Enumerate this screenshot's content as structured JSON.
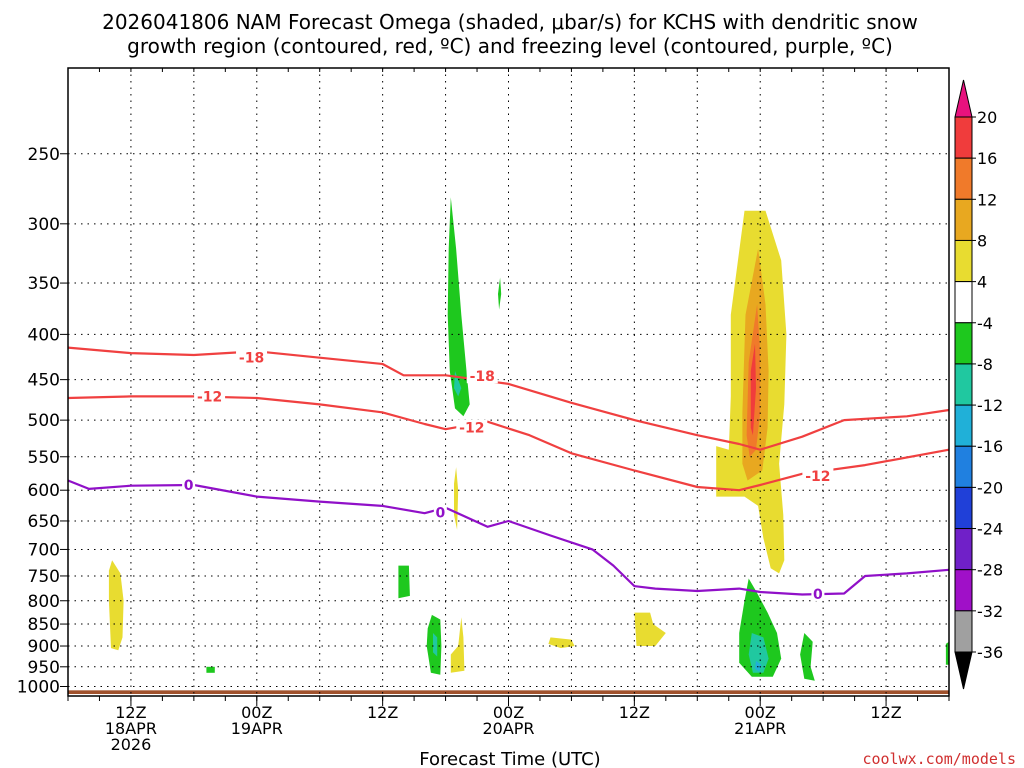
{
  "chart_data": {
    "type": "contour",
    "title_line1": "2026041806 NAM Forecast Omega (shaded, μbar/s) for KCHS with dendritic snow",
    "title_line2": "growth region (contoured, red, ºC) and freezing level (contoured, purple, ºC)",
    "xlabel": "Forecast Time (UTC)",
    "credit": "coolwx.com/models",
    "x_units": "forecast hours",
    "xlim": [
      0,
      84
    ],
    "y_units": "hPa",
    "ylim": [
      1025,
      200
    ],
    "y_ticks": [
      250,
      300,
      350,
      400,
      450,
      500,
      550,
      600,
      650,
      700,
      750,
      800,
      850,
      900,
      950,
      1000
    ],
    "x_ticks": [
      {
        "t": 6,
        "lines": [
          "12Z",
          "18APR",
          "2026"
        ]
      },
      {
        "t": 18,
        "lines": [
          "00Z",
          "19APR"
        ]
      },
      {
        "t": 30,
        "lines": [
          "12Z"
        ]
      },
      {
        "t": 42,
        "lines": [
          "00Z",
          "20APR"
        ]
      },
      {
        "t": 54,
        "lines": [
          "12Z"
        ]
      },
      {
        "t": 66,
        "lines": [
          "00Z",
          "21APR"
        ]
      },
      {
        "t": 78,
        "lines": [
          "12Z"
        ]
      }
    ],
    "colorbar": {
      "labels": [
        "20",
        "16",
        "12",
        "8",
        "4",
        "-4",
        "-8",
        "-12",
        "-16",
        "-20",
        "-24",
        "-28",
        "-32",
        "-36"
      ],
      "colors": [
        "#e8127e",
        "#f03c3c",
        "#f07a2a",
        "#e8a820",
        "#e8dc30",
        "#ffffff",
        "#1ec81e",
        "#20c8a0",
        "#20b0d8",
        "#2080e0",
        "#2040d8",
        "#7020c8",
        "#a010c8",
        "#a0a0a0",
        "#000000"
      ]
    },
    "series": [
      {
        "name": "-18",
        "color": "#f04040",
        "type": "contour",
        "points": [
          [
            0,
            414
          ],
          [
            6,
            420
          ],
          [
            12,
            422
          ],
          [
            18,
            418
          ],
          [
            24,
            425
          ],
          [
            30,
            432
          ],
          [
            32,
            445
          ],
          [
            36,
            445
          ],
          [
            42,
            455
          ],
          [
            48,
            478
          ],
          [
            54,
            500
          ],
          [
            60,
            520
          ],
          [
            64,
            532
          ],
          [
            66,
            540
          ],
          [
            70,
            522
          ],
          [
            74,
            500
          ],
          [
            80,
            495
          ],
          [
            84,
            487
          ]
        ]
      },
      {
        "name": "-12",
        "color": "#f04040",
        "type": "contour",
        "points": [
          [
            0,
            472
          ],
          [
            6,
            470
          ],
          [
            12,
            470
          ],
          [
            18,
            472
          ],
          [
            24,
            480
          ],
          [
            30,
            490
          ],
          [
            34,
            505
          ],
          [
            36,
            512
          ],
          [
            40,
            502
          ],
          [
            44,
            520
          ],
          [
            48,
            545
          ],
          [
            54,
            570
          ],
          [
            60,
            595
          ],
          [
            64,
            600
          ],
          [
            66,
            592
          ],
          [
            70,
            575
          ],
          [
            76,
            562
          ],
          [
            84,
            540
          ]
        ]
      },
      {
        "name": "0",
        "color": "#9010c8",
        "type": "contour",
        "points": [
          [
            0,
            585
          ],
          [
            2,
            598
          ],
          [
            6,
            593
          ],
          [
            12,
            592
          ],
          [
            18,
            610
          ],
          [
            24,
            618
          ],
          [
            30,
            625
          ],
          [
            34,
            637
          ],
          [
            36,
            628
          ],
          [
            40,
            660
          ],
          [
            42,
            650
          ],
          [
            46,
            675
          ],
          [
            50,
            700
          ],
          [
            52,
            730
          ],
          [
            54,
            770
          ],
          [
            56,
            775
          ],
          [
            60,
            780
          ],
          [
            64,
            775
          ],
          [
            66,
            782
          ],
          [
            70,
            787
          ],
          [
            74,
            785
          ],
          [
            76,
            750
          ],
          [
            80,
            745
          ],
          [
            84,
            738
          ]
        ]
      }
    ],
    "contour_labels": [
      {
        "series": "-18",
        "t": 17.5,
        "p": 425,
        "text": "-18"
      },
      {
        "series": "-18",
        "t": 39.5,
        "p": 446,
        "text": "-18"
      },
      {
        "series": "-12",
        "t": 13.5,
        "p": 470,
        "text": "-12"
      },
      {
        "series": "-12",
        "t": 38.5,
        "p": 510,
        "text": "-12"
      },
      {
        "series": "-12",
        "t": 71.5,
        "p": 578,
        "text": "-12"
      },
      {
        "series": "0",
        "t": 11.5,
        "p": 592,
        "text": "0"
      },
      {
        "series": "0",
        "t": 35.5,
        "p": 636,
        "text": "0"
      },
      {
        "series": "0",
        "t": 71.5,
        "p": 786,
        "text": "0"
      }
    ],
    "omega_regions": [
      {
        "level": "-4",
        "color": "#1ec81e",
        "points": [
          [
            36.5,
            280
          ],
          [
            37,
            320
          ],
          [
            37.5,
            380
          ],
          [
            38,
            440
          ],
          [
            38.3,
            480
          ],
          [
            37.7,
            495
          ],
          [
            36.9,
            485
          ],
          [
            36.4,
            440
          ],
          [
            36.2,
            380
          ],
          [
            36.3,
            320
          ]
        ]
      },
      {
        "level": "-8",
        "color": "#20c8a0",
        "points": [
          [
            36.9,
            440
          ],
          [
            37.5,
            460
          ],
          [
            37.2,
            470
          ],
          [
            36.8,
            460
          ]
        ]
      },
      {
        "level": "-4",
        "color": "#1ec81e",
        "points": [
          [
            41.2,
            345
          ],
          [
            41.3,
            360
          ],
          [
            41.1,
            375
          ],
          [
            41,
            360
          ]
        ]
      },
      {
        "level": "4",
        "color": "#e8dc30",
        "points": [
          [
            37,
            565
          ],
          [
            37.2,
            600
          ],
          [
            37.1,
            665
          ],
          [
            36.8,
            640
          ],
          [
            36.8,
            590
          ]
        ]
      },
      {
        "level": "4",
        "color": "#e8dc30",
        "points": [
          [
            64.5,
            290
          ],
          [
            66.5,
            290
          ],
          [
            68,
            330
          ],
          [
            68.5,
            400
          ],
          [
            68.3,
            480
          ],
          [
            67.8,
            560
          ],
          [
            68.2,
            640
          ],
          [
            68.3,
            720
          ],
          [
            67.8,
            745
          ],
          [
            67,
            735
          ],
          [
            66.3,
            680
          ],
          [
            65.8,
            625
          ],
          [
            64.5,
            610
          ],
          [
            61.8,
            610
          ],
          [
            61.8,
            535
          ],
          [
            63,
            540
          ],
          [
            63.2,
            470
          ],
          [
            63.2,
            380
          ]
        ]
      },
      {
        "level": "8",
        "color": "#e8a820",
        "points": [
          [
            65.8,
            320
          ],
          [
            66.5,
            370
          ],
          [
            66.8,
            440
          ],
          [
            66.7,
            510
          ],
          [
            66.2,
            570
          ],
          [
            64.8,
            585
          ],
          [
            64.3,
            560
          ],
          [
            64.3,
            490
          ],
          [
            64.6,
            380
          ]
        ]
      },
      {
        "level": "12",
        "color": "#f07a2a",
        "points": [
          [
            65.7,
            370
          ],
          [
            66,
            420
          ],
          [
            66,
            490
          ],
          [
            65.6,
            540
          ],
          [
            65,
            550
          ],
          [
            64.7,
            520
          ],
          [
            64.9,
            430
          ]
        ]
      },
      {
        "level": "16",
        "color": "#f03c3c",
        "points": [
          [
            65.5,
            410
          ],
          [
            65.6,
            460
          ],
          [
            65.3,
            520
          ],
          [
            65.1,
            510
          ],
          [
            65.1,
            440
          ]
        ]
      },
      {
        "level": "-4",
        "color": "#1ec81e",
        "points": [
          [
            64.9,
            755
          ],
          [
            65.6,
            780
          ],
          [
            66.7,
            825
          ],
          [
            67.6,
            870
          ],
          [
            68,
            930
          ],
          [
            67.2,
            975
          ],
          [
            65.2,
            975
          ],
          [
            64,
            940
          ],
          [
            64,
            870
          ],
          [
            64.5,
            800
          ]
        ]
      },
      {
        "level": "-8",
        "color": "#20c8a0",
        "points": [
          [
            65.2,
            870
          ],
          [
            66.3,
            880
          ],
          [
            66.8,
            930
          ],
          [
            66.3,
            965
          ],
          [
            65.3,
            965
          ],
          [
            64.9,
            920
          ]
        ]
      },
      {
        "level": "-12",
        "color": "#20b0d8",
        "points": [
          [
            65.6,
            935
          ],
          [
            66.1,
            945
          ],
          [
            65.9,
            962
          ],
          [
            65.5,
            955
          ]
        ]
      },
      {
        "level": "4",
        "color": "#e8dc30",
        "points": [
          [
            4.2,
            720
          ],
          [
            5,
            745
          ],
          [
            5.3,
            800
          ],
          [
            5.2,
            880
          ],
          [
            4.8,
            910
          ],
          [
            4.1,
            905
          ],
          [
            3.9,
            800
          ],
          [
            3.9,
            740
          ]
        ]
      },
      {
        "level": "-4",
        "color": "#1ec81e",
        "points": [
          [
            31.5,
            730
          ],
          [
            32.5,
            730
          ],
          [
            32.6,
            790
          ],
          [
            31.5,
            795
          ]
        ]
      },
      {
        "level": "-4",
        "color": "#1ec81e",
        "points": [
          [
            34.7,
            830
          ],
          [
            35.5,
            840
          ],
          [
            35.6,
            900
          ],
          [
            35.5,
            970
          ],
          [
            34.6,
            965
          ],
          [
            34.2,
            900
          ],
          [
            34.3,
            860
          ]
        ]
      },
      {
        "level": "-8",
        "color": "#20c8a0",
        "points": [
          [
            34.8,
            870
          ],
          [
            35.2,
            880
          ],
          [
            35.2,
            925
          ],
          [
            34.8,
            915
          ]
        ]
      },
      {
        "level": "4",
        "color": "#e8dc30",
        "points": [
          [
            37.5,
            835
          ],
          [
            37.7,
            880
          ],
          [
            37.8,
            960
          ],
          [
            36.5,
            965
          ],
          [
            36.5,
            920
          ],
          [
            37.2,
            900
          ]
        ]
      },
      {
        "level": "4",
        "color": "#e8dc30",
        "points": [
          [
            46,
            880
          ],
          [
            48,
            885
          ],
          [
            48.3,
            900
          ],
          [
            47,
            905
          ],
          [
            45.8,
            895
          ]
        ]
      },
      {
        "level": "4",
        "color": "#e8dc30",
        "points": [
          [
            54,
            825
          ],
          [
            55.5,
            825
          ],
          [
            55.8,
            850
          ],
          [
            57,
            870
          ],
          [
            56,
            900
          ],
          [
            54.2,
            900
          ]
        ]
      },
      {
        "level": "-4",
        "color": "#1ec81e",
        "points": [
          [
            70.2,
            870
          ],
          [
            71,
            890
          ],
          [
            70.8,
            950
          ],
          [
            71.2,
            985
          ],
          [
            70.2,
            980
          ],
          [
            69.8,
            920
          ]
        ]
      },
      {
        "level": "-4",
        "color": "#1ec81e",
        "points": [
          [
            13.2,
            950
          ],
          [
            14,
            950
          ],
          [
            14,
            965
          ],
          [
            13.2,
            965
          ]
        ]
      },
      {
        "level": "-4",
        "color": "#1ec81e",
        "points": [
          [
            83.7,
            895
          ],
          [
            84,
            890
          ],
          [
            84,
            945
          ],
          [
            83.7,
            945
          ]
        ]
      }
    ],
    "terrain": {
      "color": "#a0522d",
      "top_hpa": 1010
    }
  }
}
